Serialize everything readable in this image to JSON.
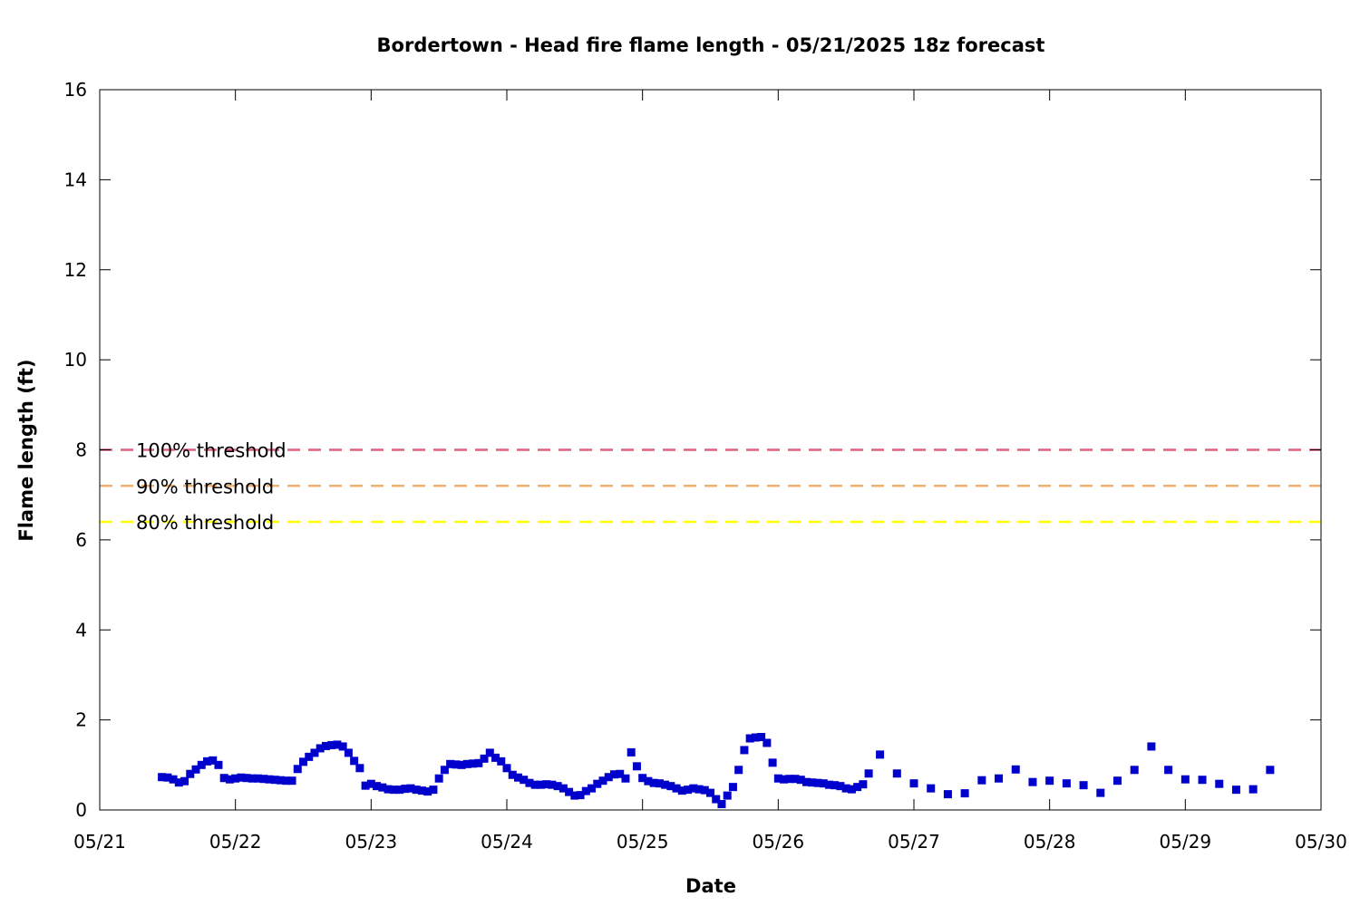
{
  "chart_data": {
    "type": "scatter",
    "title": "Bordertown - Head fire flame length - 05/21/2025 18z forecast",
    "xlabel": "Date",
    "ylabel": "Flame length (ft)",
    "ylim": [
      0,
      16
    ],
    "yticks": [
      0,
      2,
      4,
      6,
      8,
      10,
      12,
      14,
      16
    ],
    "xlim": [
      "2025-05-21",
      "2025-05-30"
    ],
    "xtick_labels": [
      "05/21",
      "05/22",
      "05/23",
      "05/24",
      "05/25",
      "05/26",
      "05/27",
      "05/28",
      "05/29",
      "05/30"
    ],
    "grid": false,
    "series": [
      {
        "marker": "square",
        "color": "#0000cc",
        "points": [
          [
            "2025-05-21 11:00",
            0.73
          ],
          [
            "2025-05-21 12:00",
            0.72
          ],
          [
            "2025-05-21 13:00",
            0.68
          ],
          [
            "2025-05-21 14:00",
            0.61
          ],
          [
            "2025-05-21 15:00",
            0.64
          ],
          [
            "2025-05-21 16:00",
            0.8
          ],
          [
            "2025-05-21 17:00",
            0.9
          ],
          [
            "2025-05-21 18:00",
            1.0
          ],
          [
            "2025-05-21 19:00",
            1.08
          ],
          [
            "2025-05-21 20:00",
            1.1
          ],
          [
            "2025-05-21 21:00",
            1.0
          ],
          [
            "2025-05-21 22:00",
            0.71
          ],
          [
            "2025-05-21 23:00",
            0.68
          ],
          [
            "2025-05-22 00:00",
            0.7
          ],
          [
            "2025-05-22 01:00",
            0.72
          ],
          [
            "2025-05-22 02:00",
            0.71
          ],
          [
            "2025-05-22 03:00",
            0.7
          ],
          [
            "2025-05-22 04:00",
            0.7
          ],
          [
            "2025-05-22 05:00",
            0.69
          ],
          [
            "2025-05-22 06:00",
            0.68
          ],
          [
            "2025-05-22 07:00",
            0.67
          ],
          [
            "2025-05-22 08:00",
            0.66
          ],
          [
            "2025-05-22 09:00",
            0.65
          ],
          [
            "2025-05-22 10:00",
            0.65
          ],
          [
            "2025-05-22 11:00",
            0.91
          ],
          [
            "2025-05-22 12:00",
            1.07
          ],
          [
            "2025-05-22 13:00",
            1.18
          ],
          [
            "2025-05-22 14:00",
            1.27
          ],
          [
            "2025-05-22 15:00",
            1.37
          ],
          [
            "2025-05-22 16:00",
            1.42
          ],
          [
            "2025-05-22 17:00",
            1.44
          ],
          [
            "2025-05-22 18:00",
            1.45
          ],
          [
            "2025-05-22 19:00",
            1.41
          ],
          [
            "2025-05-22 20:00",
            1.27
          ],
          [
            "2025-05-22 21:00",
            1.09
          ],
          [
            "2025-05-22 22:00",
            0.93
          ],
          [
            "2025-05-22 23:00",
            0.54
          ],
          [
            "2025-05-23 00:00",
            0.58
          ],
          [
            "2025-05-23 01:00",
            0.53
          ],
          [
            "2025-05-23 02:00",
            0.5
          ],
          [
            "2025-05-23 03:00",
            0.46
          ],
          [
            "2025-05-23 04:00",
            0.45
          ],
          [
            "2025-05-23 05:00",
            0.45
          ],
          [
            "2025-05-23 06:00",
            0.47
          ],
          [
            "2025-05-23 07:00",
            0.48
          ],
          [
            "2025-05-23 08:00",
            0.45
          ],
          [
            "2025-05-23 09:00",
            0.43
          ],
          [
            "2025-05-23 10:00",
            0.41
          ],
          [
            "2025-05-23 11:00",
            0.45
          ],
          [
            "2025-05-23 12:00",
            0.7
          ],
          [
            "2025-05-23 13:00",
            0.89
          ],
          [
            "2025-05-23 14:00",
            1.02
          ],
          [
            "2025-05-23 15:00",
            1.01
          ],
          [
            "2025-05-23 16:00",
            1.0
          ],
          [
            "2025-05-23 17:00",
            1.02
          ],
          [
            "2025-05-23 18:00",
            1.03
          ],
          [
            "2025-05-23 19:00",
            1.04
          ],
          [
            "2025-05-23 20:00",
            1.14
          ],
          [
            "2025-05-23 21:00",
            1.27
          ],
          [
            "2025-05-23 22:00",
            1.16
          ],
          [
            "2025-05-23 23:00",
            1.08
          ],
          [
            "2025-05-24 00:00",
            0.93
          ],
          [
            "2025-05-24 01:00",
            0.78
          ],
          [
            "2025-05-24 02:00",
            0.72
          ],
          [
            "2025-05-24 03:00",
            0.67
          ],
          [
            "2025-05-24 04:00",
            0.6
          ],
          [
            "2025-05-24 05:00",
            0.56
          ],
          [
            "2025-05-24 06:00",
            0.56
          ],
          [
            "2025-05-24 07:00",
            0.57
          ],
          [
            "2025-05-24 08:00",
            0.56
          ],
          [
            "2025-05-24 09:00",
            0.53
          ],
          [
            "2025-05-24 10:00",
            0.48
          ],
          [
            "2025-05-24 11:00",
            0.4
          ],
          [
            "2025-05-24 12:00",
            0.32
          ],
          [
            "2025-05-24 13:00",
            0.33
          ],
          [
            "2025-05-24 14:00",
            0.42
          ],
          [
            "2025-05-24 15:00",
            0.48
          ],
          [
            "2025-05-24 16:00",
            0.58
          ],
          [
            "2025-05-24 17:00",
            0.65
          ],
          [
            "2025-05-24 18:00",
            0.73
          ],
          [
            "2025-05-24 19:00",
            0.79
          ],
          [
            "2025-05-24 20:00",
            0.8
          ],
          [
            "2025-05-24 21:00",
            0.7
          ],
          [
            "2025-05-24 22:00",
            1.28
          ],
          [
            "2025-05-24 23:00",
            0.97
          ],
          [
            "2025-05-25 00:00",
            0.71
          ],
          [
            "2025-05-25 01:00",
            0.64
          ],
          [
            "2025-05-25 02:00",
            0.6
          ],
          [
            "2025-05-25 03:00",
            0.59
          ],
          [
            "2025-05-25 04:00",
            0.56
          ],
          [
            "2025-05-25 05:00",
            0.53
          ],
          [
            "2025-05-25 06:00",
            0.48
          ],
          [
            "2025-05-25 07:00",
            0.43
          ],
          [
            "2025-05-25 08:00",
            0.45
          ],
          [
            "2025-05-25 09:00",
            0.48
          ],
          [
            "2025-05-25 10:00",
            0.46
          ],
          [
            "2025-05-25 11:00",
            0.44
          ],
          [
            "2025-05-25 12:00",
            0.38
          ],
          [
            "2025-05-25 13:00",
            0.24
          ],
          [
            "2025-05-25 14:00",
            0.13
          ],
          [
            "2025-05-25 15:00",
            0.32
          ],
          [
            "2025-05-25 16:00",
            0.51
          ],
          [
            "2025-05-25 17:00",
            0.89
          ],
          [
            "2025-05-25 18:00",
            1.33
          ],
          [
            "2025-05-25 19:00",
            1.59
          ],
          [
            "2025-05-25 20:00",
            1.61
          ],
          [
            "2025-05-25 21:00",
            1.62
          ],
          [
            "2025-05-25 22:00",
            1.49
          ],
          [
            "2025-05-25 23:00",
            1.05
          ],
          [
            "2025-05-26 00:00",
            0.7
          ],
          [
            "2025-05-26 01:00",
            0.68
          ],
          [
            "2025-05-26 02:00",
            0.69
          ],
          [
            "2025-05-26 03:00",
            0.69
          ],
          [
            "2025-05-26 04:00",
            0.67
          ],
          [
            "2025-05-26 05:00",
            0.62
          ],
          [
            "2025-05-26 06:00",
            0.61
          ],
          [
            "2025-05-26 07:00",
            0.6
          ],
          [
            "2025-05-26 08:00",
            0.59
          ],
          [
            "2025-05-26 09:00",
            0.56
          ],
          [
            "2025-05-26 10:00",
            0.55
          ],
          [
            "2025-05-26 11:00",
            0.53
          ],
          [
            "2025-05-26 12:00",
            0.48
          ],
          [
            "2025-05-26 13:00",
            0.46
          ],
          [
            "2025-05-26 14:00",
            0.51
          ],
          [
            "2025-05-26 15:00",
            0.57
          ],
          [
            "2025-05-26 16:00",
            0.81
          ],
          [
            "2025-05-26 18:00",
            1.23
          ],
          [
            "2025-05-26 21:00",
            0.81
          ],
          [
            "2025-05-27 00:00",
            0.59
          ],
          [
            "2025-05-27 03:00",
            0.48
          ],
          [
            "2025-05-27 06:00",
            0.35
          ],
          [
            "2025-05-27 09:00",
            0.37
          ],
          [
            "2025-05-27 12:00",
            0.66
          ],
          [
            "2025-05-27 15:00",
            0.7
          ],
          [
            "2025-05-27 18:00",
            0.9
          ],
          [
            "2025-05-27 21:00",
            0.62
          ],
          [
            "2025-05-28 00:00",
            0.65
          ],
          [
            "2025-05-28 03:00",
            0.59
          ],
          [
            "2025-05-28 06:00",
            0.55
          ],
          [
            "2025-05-28 09:00",
            0.38
          ],
          [
            "2025-05-28 12:00",
            0.65
          ],
          [
            "2025-05-28 15:00",
            0.89
          ],
          [
            "2025-05-28 18:00",
            1.41
          ],
          [
            "2025-05-28 21:00",
            0.89
          ],
          [
            "2025-05-29 00:00",
            0.68
          ],
          [
            "2025-05-29 03:00",
            0.67
          ],
          [
            "2025-05-29 06:00",
            0.58
          ],
          [
            "2025-05-29 09:00",
            0.45
          ],
          [
            "2025-05-29 12:00",
            0.46
          ],
          [
            "2025-05-29 15:00",
            0.89
          ]
        ]
      }
    ],
    "thresholds": [
      {
        "label": "100% threshold",
        "value": 8.0,
        "color": "#e0607e"
      },
      {
        "label": "90% threshold",
        "value": 7.2,
        "color": "#f0b070"
      },
      {
        "label": "80% threshold",
        "value": 6.4,
        "color": "#ffff00"
      }
    ],
    "legend_placement": "left, on threshold lines"
  }
}
